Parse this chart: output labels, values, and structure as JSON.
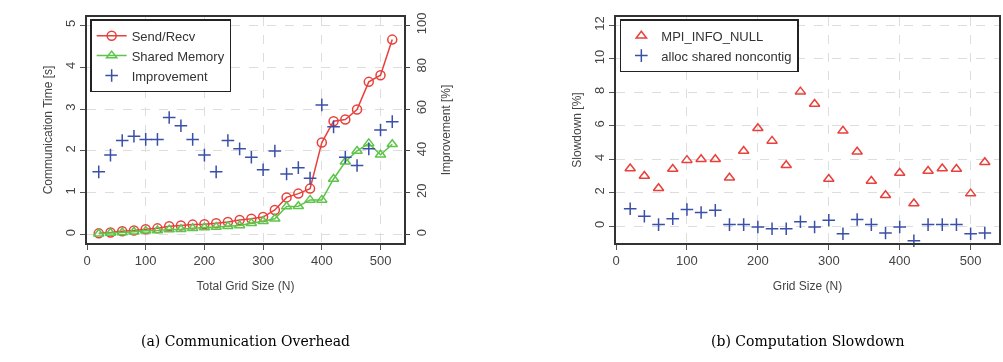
{
  "chart_data": [
    {
      "type": "line",
      "xlabel": "Total Grid Size (N)",
      "ylabel": "Communication Time [s]",
      "y2label": "Improvement [%]",
      "annotations": [
        "(a) Communication Overhead"
      ],
      "x": [
        20,
        40,
        60,
        80,
        100,
        120,
        140,
        160,
        180,
        200,
        220,
        240,
        260,
        280,
        300,
        320,
        340,
        360,
        380,
        400,
        420,
        440,
        460,
        480,
        500,
        520
      ],
      "series": [
        {
          "name": "Send/Recv",
          "color": "#e8413c",
          "marker": "circle",
          "values": [
            0.03,
            0.05,
            0.08,
            0.1,
            0.13,
            0.15,
            0.2,
            0.22,
            0.24,
            0.25,
            0.27,
            0.3,
            0.35,
            0.38,
            0.42,
            0.59,
            0.89,
            0.98,
            1.1,
            2.2,
            2.71,
            2.75,
            2.99,
            3.65,
            3.81,
            4.66
          ]
        },
        {
          "name": "Shared Memory",
          "color": "#5ec44a",
          "marker": "triangle",
          "values": [
            0.02,
            0.04,
            0.05,
            0.07,
            0.09,
            0.1,
            0.12,
            0.13,
            0.15,
            0.17,
            0.18,
            0.2,
            0.22,
            0.27,
            0.32,
            0.38,
            0.67,
            0.68,
            0.83,
            0.83,
            1.33,
            1.74,
            2.0,
            2.18,
            1.91,
            2.16
          ]
        },
        {
          "name": "Improvement",
          "color": "#3a4fa8",
          "type": "scatter",
          "marker": "cross",
          "axis": "y2",
          "values": [
            30,
            38,
            45,
            47,
            45.5,
            45.5,
            56,
            52,
            45.5,
            38,
            30,
            45,
            41,
            37,
            31,
            40,
            29,
            32,
            27,
            62,
            51.5,
            37,
            33,
            41,
            50,
            54
          ]
        }
      ],
      "xlim": [
        0,
        540
      ],
      "xticks": [
        0,
        100,
        200,
        300,
        400,
        500
      ],
      "ylim": [
        -0.2,
        5.2
      ],
      "yticks": [
        0,
        1,
        2,
        3,
        4,
        5
      ],
      "y2lim": [
        -4,
        104
      ],
      "y2ticks": [
        0,
        20,
        40,
        60,
        80,
        100
      ],
      "grid": true,
      "legend": "top left",
      "line_style": "solid"
    },
    {
      "type": "scatter",
      "xlabel": "Grid Size (N)",
      "ylabel": "Slowdown [%]",
      "annotations": [
        "(b) Computation Slowdown"
      ],
      "x": [
        20,
        40,
        60,
        80,
        100,
        120,
        140,
        160,
        180,
        200,
        220,
        240,
        260,
        280,
        300,
        320,
        340,
        360,
        380,
        400,
        420,
        440,
        460,
        480,
        500,
        520
      ],
      "series": [
        {
          "name": "MPI_INFO_NULL",
          "color": "#e8413c",
          "marker": "triangle",
          "values": [
            3.45,
            3.0,
            2.27,
            3.42,
            3.95,
            4.0,
            4.0,
            2.9,
            4.5,
            5.85,
            5.1,
            3.64,
            8.04,
            7.3,
            2.82,
            5.7,
            4.45,
            2.7,
            1.85,
            3.18,
            1.36,
            3.3,
            3.45,
            3.42,
            1.95,
            3.82
          ]
        },
        {
          "name": "alloc shared noncontig",
          "color": "#3a4fa8",
          "marker": "cross",
          "values": [
            1.05,
            0.6,
            0.1,
            0.45,
            1.0,
            0.82,
            0.95,
            0.1,
            0.1,
            -0.04,
            -0.15,
            -0.15,
            0.27,
            -0.04,
            0.36,
            -0.45,
            0.4,
            0.1,
            -0.4,
            -0.04,
            -0.87,
            0.1,
            0.1,
            0.1,
            -0.45,
            -0.4
          ]
        }
      ],
      "xlim": [
        0,
        540
      ],
      "xticks": [
        0,
        100,
        200,
        300,
        400,
        500
      ],
      "ylim": [
        -1,
        12.5
      ],
      "yticks": [
        0,
        2,
        4,
        6,
        8,
        10,
        12
      ],
      "grid": true,
      "legend": "top left"
    }
  ]
}
